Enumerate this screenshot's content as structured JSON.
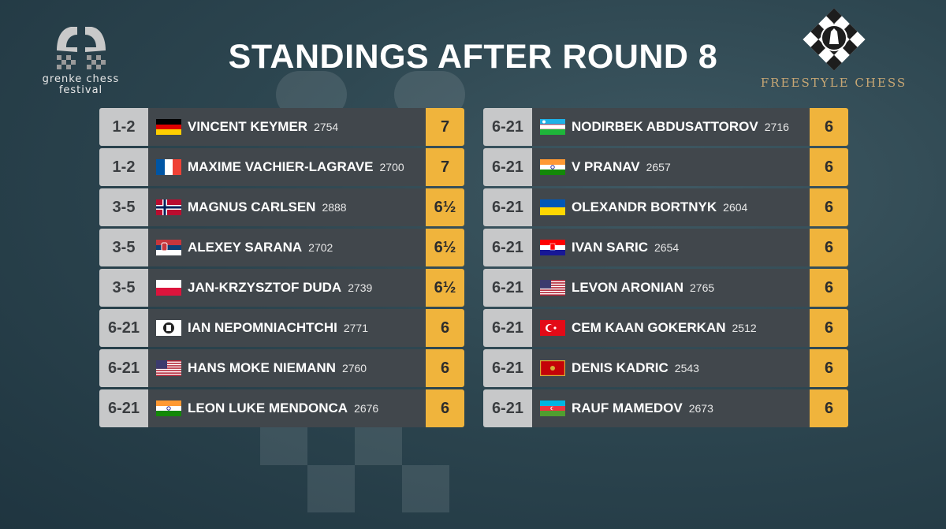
{
  "title": "STANDINGS AFTER ROUND 8",
  "left_logo": {
    "line1": "grenke chess",
    "line2": "festival",
    "icon": "grenke-knight-logo-icon"
  },
  "right_logo": {
    "brand": "FREESTYLE CHESS",
    "icon": "freestyle-king-logo-icon"
  },
  "colors": {
    "rank_bg": "#c7c8c9",
    "name_bg": "#41474c",
    "score_bg": "#f0b43c",
    "brand_gold": "#c8a774"
  },
  "standings_left": [
    {
      "rank": "1-2",
      "flag": "germany-flag-icon",
      "name": "VINCENT KEYMER",
      "rating": "2754",
      "score": "7"
    },
    {
      "rank": "1-2",
      "flag": "france-flag-icon",
      "name": "MAXIME VACHIER-LAGRAVE",
      "rating": "2700",
      "score": "7"
    },
    {
      "rank": "3-5",
      "flag": "norway-flag-icon",
      "name": "MAGNUS CARLSEN",
      "rating": "2888",
      "score": "6½"
    },
    {
      "rank": "3-5",
      "flag": "serbia-flag-icon",
      "name": "ALEXEY SARANA",
      "rating": "2702",
      "score": "6½"
    },
    {
      "rank": "3-5",
      "flag": "poland-flag-icon",
      "name": "JAN-KRZYSZTOF DUDA",
      "rating": "2739",
      "score": "6½"
    },
    {
      "rank": "6-21",
      "flag": "fide-flag-icon",
      "name": "IAN NEPOMNIACHTCHI",
      "rating": "2771",
      "score": "6"
    },
    {
      "rank": "6-21",
      "flag": "usa-flag-icon",
      "name": "HANS MOKE NIEMANN",
      "rating": "2760",
      "score": "6"
    },
    {
      "rank": "6-21",
      "flag": "india-flag-icon",
      "name": "LEON LUKE MENDONCA",
      "rating": "2676",
      "score": "6"
    }
  ],
  "standings_right": [
    {
      "rank": "6-21",
      "flag": "uzbekistan-flag-icon",
      "name": "NODIRBEK ABDUSATTOROV",
      "rating": "2716",
      "score": "6"
    },
    {
      "rank": "6-21",
      "flag": "india-flag-icon",
      "name": "V PRANAV",
      "rating": "2657",
      "score": "6"
    },
    {
      "rank": "6-21",
      "flag": "ukraine-flag-icon",
      "name": "OLEXANDR BORTNYK",
      "rating": "2604",
      "score": "6"
    },
    {
      "rank": "6-21",
      "flag": "croatia-flag-icon",
      "name": "IVAN SARIC",
      "rating": "2654",
      "score": "6"
    },
    {
      "rank": "6-21",
      "flag": "usa-flag-icon",
      "name": "LEVON ARONIAN",
      "rating": "2765",
      "score": "6"
    },
    {
      "rank": "6-21",
      "flag": "turkey-flag-icon",
      "name": "CEM KAAN GOKERKAN",
      "rating": "2512",
      "score": "6"
    },
    {
      "rank": "6-21",
      "flag": "montenegro-flag-icon",
      "name": "DENIS KADRIC",
      "rating": "2543",
      "score": "6"
    },
    {
      "rank": "6-21",
      "flag": "azerbaijan-flag-icon",
      "name": "RAUF MAMEDOV",
      "rating": "2673",
      "score": "6"
    }
  ]
}
